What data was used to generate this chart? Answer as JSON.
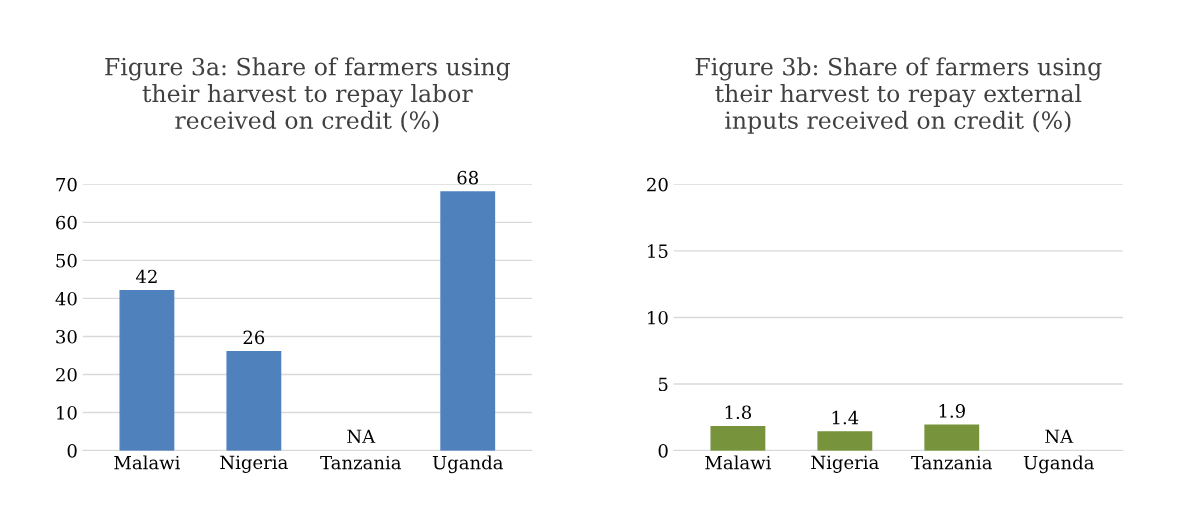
{
  "chart_data": [
    {
      "type": "bar",
      "title": "Figure 3a: Share of farmers using\ntheir harvest to repay labor\nreceived on credit (%)",
      "categories": [
        "Malawi",
        "Nigeria",
        "Tanzania",
        "Uganda"
      ],
      "values": [
        42,
        26,
        null,
        68
      ],
      "value_labels": [
        "42",
        "26",
        "NA",
        "68"
      ],
      "color": "#4f81bd",
      "ylim": [
        0,
        70
      ],
      "yticks": [
        0,
        10,
        20,
        30,
        40,
        50,
        60,
        70
      ],
      "grid": "y",
      "legend": false
    },
    {
      "type": "bar",
      "title": "Figure 3b: Share of farmers using\ntheir harvest to repay external\ninputs received on credit (%)",
      "categories": [
        "Malawi",
        "Nigeria",
        "Tanzania",
        "Uganda"
      ],
      "values": [
        1.8,
        1.4,
        1.9,
        null
      ],
      "value_labels": [
        "1.8",
        "1.4",
        "1.9",
        "NA"
      ],
      "color": "#77933c",
      "ylim": [
        0,
        20
      ],
      "yticks": [
        0,
        5,
        10,
        15,
        20
      ],
      "grid": "y",
      "legend": false
    }
  ]
}
